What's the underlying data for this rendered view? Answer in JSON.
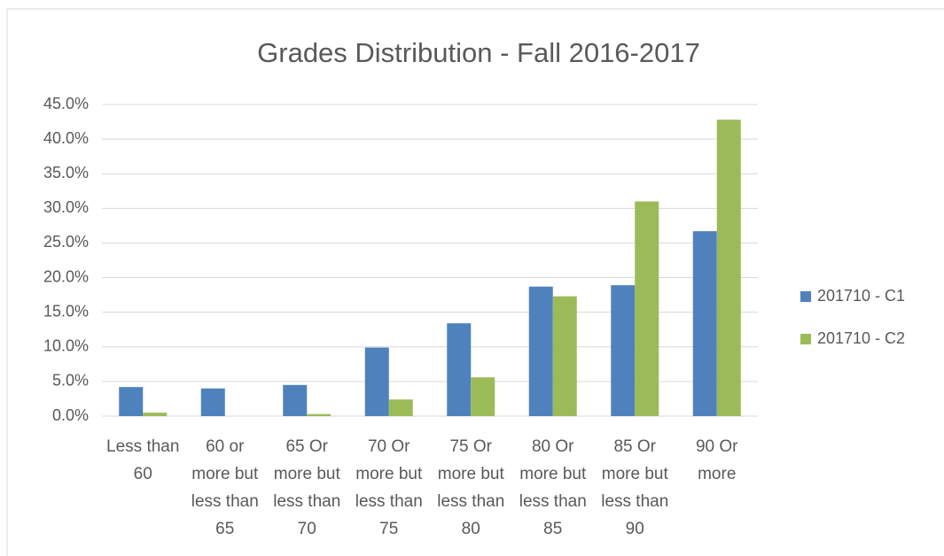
{
  "chart_data": {
    "type": "bar",
    "title": "Grades Distribution - Fall 2016-2017",
    "categories": [
      "Less than 60",
      "60 or more but less than 65",
      "65 Or more but less than 70",
      "70 Or more but less than 75",
      "75 Or more but less than 80",
      "80 Or more but less than 85",
      "85 Or more but less than 90",
      "90 Or more"
    ],
    "series": [
      {
        "name": "201710 - C1",
        "color": "#4f81bd",
        "values": [
          4.2,
          4.0,
          4.5,
          9.9,
          13.4,
          18.7,
          18.9,
          26.7
        ]
      },
      {
        "name": "201710 - C2",
        "color": "#9bbb59",
        "values": [
          0.5,
          0,
          0.3,
          2.4,
          5.6,
          17.3,
          31.0,
          42.8
        ]
      }
    ],
    "ylim": [
      0,
      45
    ],
    "yticks": [
      {
        "value": 0,
        "label": "0.0%"
      },
      {
        "value": 5,
        "label": "5.0%"
      },
      {
        "value": 10,
        "label": "10.0%"
      },
      {
        "value": 15,
        "label": "15.0%"
      },
      {
        "value": 20,
        "label": "20.0%"
      },
      {
        "value": 25,
        "label": "25.0%"
      },
      {
        "value": 30,
        "label": "30.0%"
      },
      {
        "value": 35,
        "label": "35.0%"
      },
      {
        "value": 40,
        "label": "40.0%"
      },
      {
        "value": 45,
        "label": "45.0%"
      }
    ],
    "grid": true,
    "legend": "right"
  }
}
